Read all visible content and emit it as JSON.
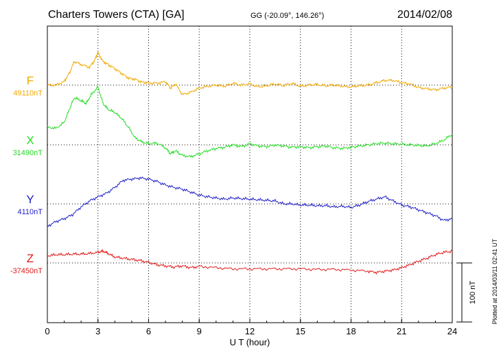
{
  "header": {
    "station": "Charters Towers (CTA)  [GA]",
    "coords": "GG (-20.09°, 146.26°)",
    "date": "2014/02/08"
  },
  "footer": {
    "plotted": "Plotted at 2014/03/11 02:41 UT"
  },
  "scale": {
    "label": "100 nT",
    "value_nT": 100
  },
  "chart_data": {
    "type": "line",
    "title": "Charters Towers (CTA)  [GA]",
    "xlabel": "U T (hour)",
    "ylabel": "",
    "xlim": [
      0,
      24
    ],
    "x_ticks": [
      "0",
      "3",
      "6",
      "9",
      "12",
      "15",
      "18",
      "21",
      "24"
    ],
    "grid": true,
    "series": [
      {
        "name": "F",
        "baseline_label": "49110nT",
        "baseline_nT": 49110,
        "color": "#f0a800",
        "x": [
          0,
          0.5,
          1,
          1.3,
          1.6,
          2,
          2.5,
          2.8,
          3,
          3.3,
          3.6,
          4,
          4.4,
          4.8,
          5.2,
          5.6,
          6,
          6.5,
          7,
          7.3,
          7.6,
          8,
          8.5,
          9,
          9.5,
          10,
          10.5,
          11,
          11.5,
          12,
          12.5,
          13,
          13.5,
          14,
          14.5,
          15,
          15.5,
          16,
          16.5,
          17,
          17.5,
          18,
          18.5,
          19,
          19.5,
          20,
          20.5,
          21,
          21.5,
          22,
          22.5,
          23,
          23.5,
          24
        ],
        "y": [
          0,
          0,
          6,
          20,
          40,
          35,
          30,
          42,
          55,
          40,
          35,
          28,
          20,
          12,
          10,
          5,
          4,
          3,
          6,
          -5,
          2,
          -16,
          -12,
          -5,
          -2,
          0,
          -2,
          3,
          0,
          2,
          -3,
          -1,
          2,
          -1,
          3,
          -2,
          0,
          1,
          -1,
          0,
          -2,
          -3,
          -1,
          0,
          4,
          8,
          8,
          4,
          2,
          -4,
          -6,
          -8,
          -5,
          -3
        ]
      },
      {
        "name": "X",
        "baseline_label": "31490nT",
        "baseline_nT": 31490,
        "color": "#22dd22",
        "x": [
          0,
          0.5,
          1,
          1.3,
          1.6,
          2,
          2.3,
          2.6,
          3,
          3.3,
          3.6,
          4,
          4.4,
          4.8,
          5.2,
          5.6,
          6,
          6.5,
          7,
          7.3,
          7.6,
          8,
          8.5,
          9,
          9.5,
          10,
          10.5,
          11,
          11.5,
          12,
          12.5,
          13,
          13.5,
          14,
          14.5,
          15,
          15.5,
          16,
          16.5,
          17,
          17.5,
          18,
          18.5,
          19,
          19.5,
          20,
          20.5,
          21,
          21.5,
          22,
          22.5,
          23,
          23.5,
          24
        ],
        "y": [
          30,
          28,
          38,
          60,
          80,
          75,
          70,
          85,
          98,
          70,
          60,
          55,
          45,
          30,
          12,
          5,
          2,
          3,
          -5,
          -15,
          -10,
          -18,
          -20,
          -15,
          -10,
          -6,
          -4,
          0,
          -3,
          2,
          -2,
          -3,
          0,
          -2,
          -4,
          -3,
          -5,
          -3,
          -2,
          -5,
          -6,
          -4,
          -2,
          0,
          2,
          3,
          2,
          1,
          0,
          -1,
          -2,
          2,
          8,
          18
        ]
      },
      {
        "name": "Y",
        "baseline_label": "4110nT",
        "baseline_nT": 4110,
        "color": "#1e1ec8",
        "x": [
          0,
          0.5,
          1,
          1.5,
          2,
          2.5,
          3,
          3.5,
          4,
          4.5,
          5,
          5.5,
          6,
          6.5,
          7,
          7.5,
          8,
          8.5,
          9,
          9.5,
          10,
          10.5,
          11,
          11.5,
          12,
          12.5,
          13,
          13.5,
          14,
          14.5,
          15,
          15.5,
          16,
          16.5,
          17,
          17.5,
          18,
          18.5,
          19,
          19.5,
          20,
          20.5,
          21,
          21.5,
          22,
          22.5,
          23,
          23.5,
          24
        ],
        "y": [
          -38,
          -30,
          -25,
          -18,
          -5,
          5,
          12,
          18,
          28,
          40,
          42,
          44,
          42,
          38,
          32,
          28,
          25,
          20,
          15,
          12,
          10,
          8,
          10,
          9,
          8,
          7,
          6,
          5,
          0,
          0,
          -2,
          -2,
          -3,
          -3,
          -5,
          -4,
          -6,
          -2,
          4,
          8,
          12,
          5,
          -2,
          -5,
          -10,
          -15,
          -20,
          -28,
          -25
        ]
      },
      {
        "name": "Z",
        "baseline_label": "-37450nT",
        "baseline_nT": -37450,
        "color": "#e01818",
        "x": [
          0,
          0.5,
          1,
          1.5,
          2,
          2.5,
          3,
          3.3,
          3.6,
          4,
          4.5,
          5,
          5.5,
          6,
          6.5,
          7,
          7.5,
          8,
          8.5,
          9,
          10,
          11,
          12,
          13,
          14,
          15,
          16,
          17,
          18,
          19,
          19.5,
          20,
          20.5,
          21,
          21.5,
          22,
          22.5,
          23,
          23.5,
          24
        ],
        "y": [
          12,
          14,
          14,
          15,
          15,
          16,
          18,
          20,
          16,
          10,
          8,
          6,
          4,
          1,
          -3,
          -5,
          -7,
          -5,
          -8,
          -6,
          -8,
          -10,
          -10,
          -10,
          -10,
          -10,
          -11,
          -11,
          -12,
          -14,
          -16,
          -14,
          -12,
          -8,
          -3,
          3,
          8,
          14,
          18,
          20
        ]
      }
    ]
  }
}
